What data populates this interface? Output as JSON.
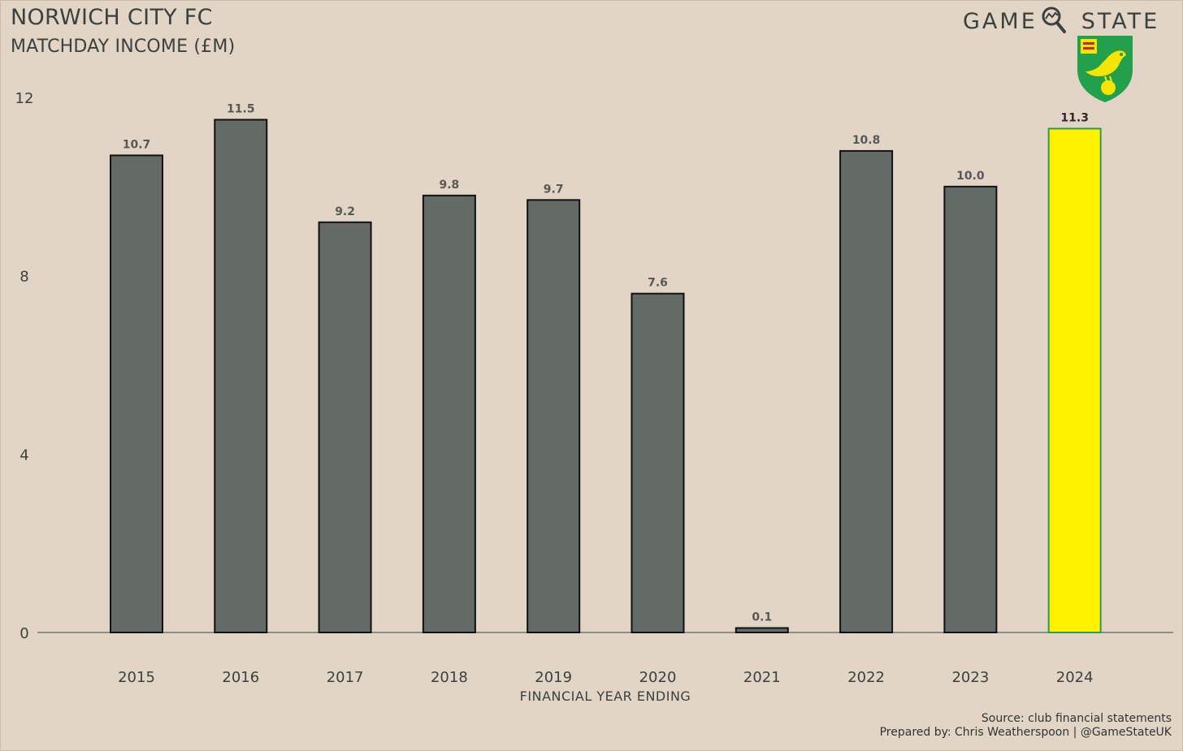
{
  "header": {
    "title": "NORWICH CITY FC",
    "subtitle": "MATCHDAY INCOME (£M)"
  },
  "brand": {
    "word_left": "GAME",
    "word_right": "STATE",
    "icon": "magnifier-icon",
    "crest": "norwich-canary-crest-logo"
  },
  "footer": {
    "source": "Source: club financial statements",
    "prepared": "Prepared by: Chris Weatherspoon | @GameStateUK"
  },
  "colors": {
    "background": "#e2d5c6",
    "bar": "#646a66",
    "highlight": "#fff200",
    "highlight_border": "#2e9a5a",
    "text": "#3a4140"
  },
  "chart_data": {
    "type": "bar",
    "title": "NORWICH CITY FC",
    "subtitle": "MATCHDAY INCOME (£M)",
    "xlabel": "FINANCIAL YEAR ENDING",
    "ylabel": "",
    "categories": [
      "2015",
      "2016",
      "2017",
      "2018",
      "2019",
      "2020",
      "2021",
      "2022",
      "2023",
      "2024"
    ],
    "values": [
      10.7,
      11.5,
      9.2,
      9.8,
      9.7,
      7.6,
      0.1,
      10.8,
      10.0,
      11.3
    ],
    "value_labels": [
      "10.7",
      "11.5",
      "9.2",
      "9.8",
      "9.7",
      "7.6",
      "0.1",
      "10.8",
      "10.0",
      "11.3"
    ],
    "highlight_category": "2024",
    "ylim": [
      0,
      12
    ],
    "yticks": [
      "0",
      "4",
      "8",
      "12"
    ],
    "grid": false,
    "legend": "none"
  }
}
